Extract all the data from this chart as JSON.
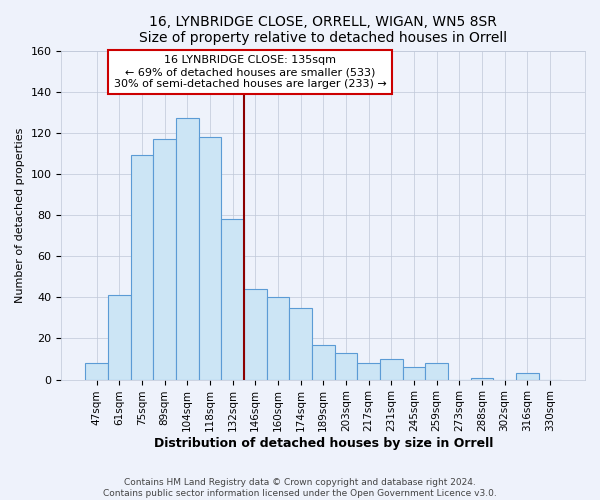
{
  "title": "16, LYNBRIDGE CLOSE, ORRELL, WIGAN, WN5 8SR",
  "subtitle": "Size of property relative to detached houses in Orrell",
  "xlabel": "Distribution of detached houses by size in Orrell",
  "ylabel": "Number of detached properties",
  "bar_labels": [
    "47sqm",
    "61sqm",
    "75sqm",
    "89sqm",
    "104sqm",
    "118sqm",
    "132sqm",
    "146sqm",
    "160sqm",
    "174sqm",
    "189sqm",
    "203sqm",
    "217sqm",
    "231sqm",
    "245sqm",
    "259sqm",
    "273sqm",
    "288sqm",
    "302sqm",
    "316sqm",
    "330sqm"
  ],
  "bar_values": [
    8,
    41,
    109,
    117,
    127,
    118,
    78,
    44,
    40,
    35,
    17,
    13,
    8,
    10,
    6,
    8,
    0,
    1,
    0,
    3,
    0
  ],
  "bar_color": "#cce5f5",
  "bar_edge_color": "#5b9bd5",
  "vline_color": "#8b0000",
  "annotation_title": "16 LYNBRIDGE CLOSE: 135sqm",
  "annotation_line1": "← 69% of detached houses are smaller (533)",
  "annotation_line2": "30% of semi-detached houses are larger (233) →",
  "annotation_box_facecolor": "#ffffff",
  "annotation_box_edgecolor": "#cc0000",
  "ylim": [
    0,
    160
  ],
  "yticks": [
    0,
    20,
    40,
    60,
    80,
    100,
    120,
    140,
    160
  ],
  "footer1": "Contains HM Land Registry data © Crown copyright and database right 2024.",
  "footer2": "Contains public sector information licensed under the Open Government Licence v3.0.",
  "background_color": "#eef2fb",
  "grid_color": "#c0c8d8"
}
